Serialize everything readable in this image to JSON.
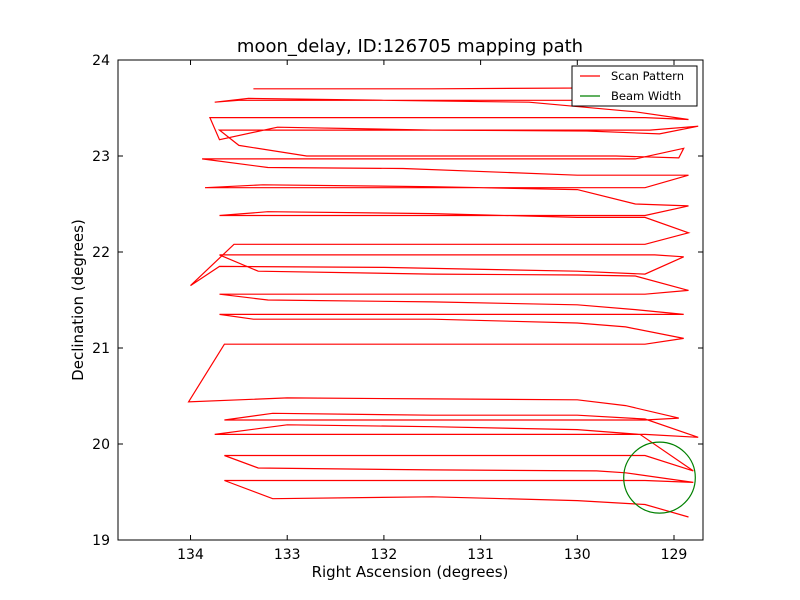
{
  "chart_data": {
    "type": "line",
    "title": "moon_delay, ID:126705 mapping path",
    "xlabel": "Right Ascension (degrees)",
    "ylabel": "Declination (degrees)",
    "xlim": [
      134.75,
      128.7
    ],
    "ylim": [
      19,
      24
    ],
    "x_reversed": true,
    "xticks": [
      "134",
      "133",
      "132",
      "131",
      "130",
      "129"
    ],
    "xtick_values": [
      134,
      133,
      132,
      131,
      130,
      129
    ],
    "yticks": [
      "19",
      "20",
      "21",
      "22",
      "23",
      "24"
    ],
    "ytick_values": [
      19,
      20,
      21,
      22,
      23,
      24
    ],
    "grid": false,
    "legend_position": "top-right",
    "series": [
      {
        "name": "Scan Pattern",
        "color": "#ff0000",
        "line_style": "solid",
        "x": [
          133.35,
          131.5,
          129.5,
          128.85,
          129.4,
          131.5,
          133.5,
          133.75,
          133.4,
          132.0,
          130.5,
          129.4,
          128.85,
          129.3,
          131.0,
          133.0,
          133.8,
          133.7,
          133.1,
          131.5,
          129.9,
          129.15,
          128.75,
          129.25,
          131.0,
          133.0,
          133.7,
          133.5,
          132.8,
          131.0,
          129.6,
          128.95,
          128.9,
          129.4,
          131.5,
          133.6,
          133.88,
          133.2,
          131.8,
          130.0,
          129.2,
          128.85,
          129.3,
          131.0,
          133.0,
          133.85,
          133.25,
          131.5,
          130.0,
          129.4,
          128.85,
          129.3,
          131.0,
          133.0,
          133.7,
          133.2,
          131.5,
          130.0,
          129.3,
          128.85,
          129.3,
          131.5,
          133.55,
          134.0,
          133.7,
          132.0,
          130.0,
          129.3,
          128.9,
          129.2,
          131.0,
          133.0,
          133.7,
          133.3,
          131.5,
          130.0,
          129.4,
          128.85,
          129.3,
          131.0,
          133.0,
          133.7,
          133.2,
          131.5,
          130.0,
          129.4,
          128.9,
          129.3,
          131.0,
          133.0,
          133.7,
          133.35,
          131.5,
          130.0,
          129.5,
          128.9,
          129.3,
          131.0,
          133.0,
          133.65,
          134.02,
          133.0,
          131.5,
          130.0,
          129.5,
          128.95,
          129.3,
          131.0,
          133.0,
          133.65,
          133.15,
          131.5,
          130.0,
          129.3,
          128.75,
          129.3,
          131.0,
          133.0,
          133.75,
          133.0,
          131.5,
          130.0,
          129.35,
          128.8,
          129.3,
          131.0,
          133.0,
          133.65,
          133.3,
          131.5,
          129.8,
          129.5,
          128.8,
          129.3,
          131.0,
          133.0,
          133.65,
          133.15,
          131.5,
          130.0,
          129.3,
          128.85
        ],
        "y": [
          23.7,
          23.7,
          23.71,
          23.72,
          23.58,
          23.58,
          23.58,
          23.56,
          23.6,
          23.58,
          23.56,
          23.46,
          23.38,
          23.4,
          23.4,
          23.4,
          23.4,
          23.17,
          23.3,
          23.27,
          23.26,
          23.23,
          23.31,
          23.27,
          23.27,
          23.27,
          23.27,
          23.11,
          23.0,
          23.0,
          23.0,
          22.98,
          23.08,
          22.97,
          22.97,
          22.97,
          22.97,
          22.88,
          22.87,
          22.8,
          22.8,
          22.8,
          22.67,
          22.67,
          22.67,
          22.67,
          22.7,
          22.68,
          22.65,
          22.5,
          22.48,
          22.38,
          22.38,
          22.38,
          22.38,
          22.42,
          22.4,
          22.36,
          22.36,
          22.2,
          22.08,
          22.08,
          22.08,
          21.65,
          21.85,
          21.84,
          21.8,
          21.77,
          21.95,
          21.97,
          21.97,
          21.97,
          21.97,
          21.8,
          21.77,
          21.76,
          21.75,
          21.6,
          21.56,
          21.56,
          21.56,
          21.56,
          21.5,
          21.48,
          21.45,
          21.4,
          21.35,
          21.35,
          21.35,
          21.35,
          21.35,
          21.3,
          21.3,
          21.26,
          21.22,
          21.1,
          21.04,
          21.04,
          21.04,
          21.04,
          20.44,
          20.48,
          20.47,
          20.46,
          20.4,
          20.27,
          20.25,
          20.25,
          20.25,
          20.25,
          20.32,
          20.3,
          20.3,
          20.26,
          20.07,
          20.1,
          20.1,
          20.1,
          20.1,
          20.2,
          20.18,
          20.15,
          20.1,
          19.72,
          19.88,
          19.88,
          19.88,
          19.88,
          19.75,
          19.73,
          19.72,
          19.7,
          19.6,
          19.62,
          19.62,
          19.62,
          19.62,
          19.43,
          19.45,
          19.41,
          19.37,
          19.24
        ]
      },
      {
        "name": "Beam Width",
        "color": "#008000",
        "line_style": "solid",
        "shape": "circle",
        "center": [
          129.15,
          19.65
        ],
        "radius": 0.37
      }
    ]
  }
}
